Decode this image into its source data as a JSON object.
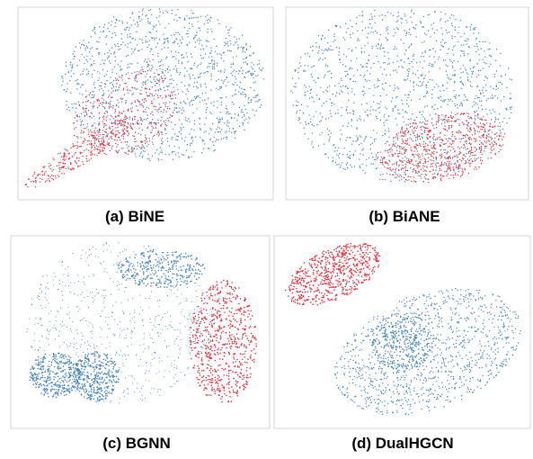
{
  "panels": [
    {
      "caption": "(a) BiNE"
    },
    {
      "caption": "(b) BiANE"
    },
    {
      "caption": "(c) BGNN"
    },
    {
      "caption": "(d) DualHGCN"
    }
  ]
}
